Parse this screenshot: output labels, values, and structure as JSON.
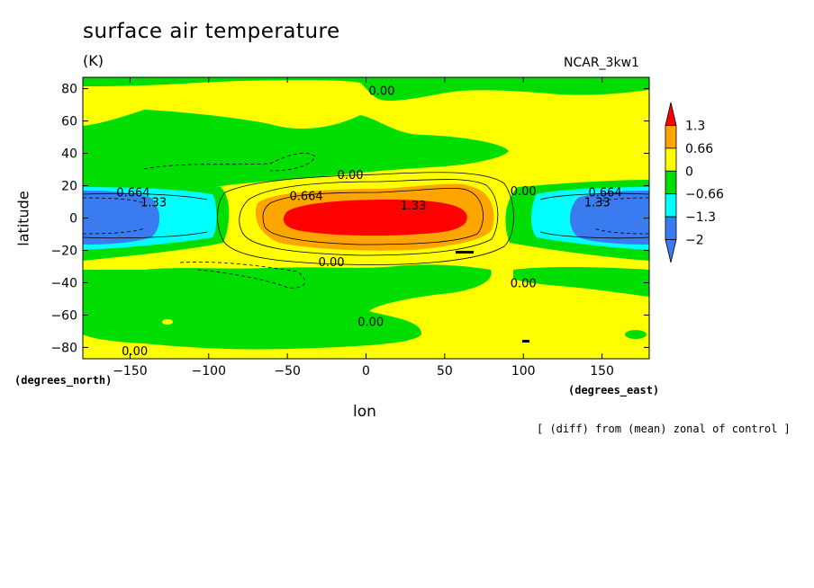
{
  "figure": {
    "title": "surface air temperature",
    "units": "(K)",
    "model": "NCAR_3kw1",
    "footnote": "[ (diff) from (mean) zonal of control ]"
  },
  "chart_data": {
    "type": "heatmap",
    "title": "surface air temperature",
    "subtitle": "(K)",
    "xlabel": "lon",
    "ylabel": "latitude",
    "x_units": "(degrees_east)",
    "y_units": "(degrees_north)",
    "xlim": [
      -180,
      180
    ],
    "ylim": [
      -87,
      87
    ],
    "x_ticks": [
      -150,
      -100,
      -50,
      0,
      50,
      100,
      150
    ],
    "x_tick_labels": [
      "−150",
      "−100",
      "−50",
      "0",
      "50",
      "100",
      "150"
    ],
    "y_ticks": [
      -80,
      -60,
      -40,
      -20,
      0,
      20,
      40,
      60,
      80
    ],
    "y_tick_labels": [
      "−80",
      "−60",
      "−40",
      "−20",
      "0",
      "20",
      "40",
      "60",
      "80"
    ],
    "colorbar": {
      "levels": [
        -2,
        -1.3,
        -0.66,
        0,
        0.66,
        1.3
      ],
      "labels": [
        "−2",
        "−1.3",
        "−0.66",
        "0",
        "0.66",
        "1.3"
      ],
      "colors": [
        "#1e90ff",
        "#00ffff",
        "#00cc00",
        "#ffff00",
        "#ffa500",
        "#ff0000"
      ],
      "bands": [
        {
          "range": "< -2",
          "color": "#3b7bf0"
        },
        {
          "range": "-2 to -1.3",
          "color": "#3b7bf0"
        },
        {
          "range": "-1.3 to -0.66",
          "color": "#00ffff"
        },
        {
          "range": "-0.66 to 0",
          "color": "#00dd00"
        },
        {
          "range": "0 to 0.66",
          "color": "#ffff00"
        },
        {
          "range": "0.66 to 1.3",
          "color": "#ffa500"
        },
        {
          "range": "> 1.3",
          "color": "#ff0000"
        }
      ]
    },
    "contour_labels": [
      {
        "text": "0.00",
        "lon": 10,
        "lat": 79
      },
      {
        "text": "0.00",
        "lon": -10,
        "lat": 27
      },
      {
        "text": "0.664",
        "lon": -38,
        "lat": 14
      },
      {
        "text": "1.33",
        "lon": 30,
        "lat": 8
      },
      {
        "text": "0.00",
        "lon": -22,
        "lat": -27
      },
      {
        "text": "0.00",
        "lon": 100,
        "lat": 17
      },
      {
        "text": "0.00",
        "lon": 100,
        "lat": -40
      },
      {
        "text": "0.00",
        "lon": 3,
        "lat": -64
      },
      {
        "text": "0.00",
        "lon": -147,
        "lat": -82
      },
      {
        "text": "0.664",
        "lon": -148,
        "lat": 16
      },
      {
        "text": "1.33",
        "lon": -135,
        "lat": 10
      },
      {
        "text": "0.664",
        "lon": 152,
        "lat": 16
      },
      {
        "text": "1.33",
        "lon": 147,
        "lat": 10
      }
    ],
    "features": [
      {
        "name": "warm anomaly",
        "center_lon": 0,
        "center_lat": 0,
        "peak": "> 1.3"
      },
      {
        "name": "cold anomaly",
        "center_lon": 180,
        "center_lat": 0,
        "min": "< -2"
      }
    ]
  }
}
